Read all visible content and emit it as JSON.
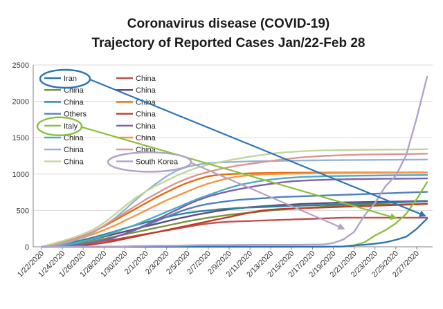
{
  "chart_data": {
    "type": "line",
    "title_lines": [
      "Coronavirus disease (COVID-19)",
      "Trajectory of Reported Cases Jan/22-Feb 28"
    ],
    "xlabel": "",
    "ylabel": "",
    "ylim": [
      0,
      2500
    ],
    "yticks": [
      0,
      500,
      1000,
      1500,
      2000,
      2500
    ],
    "grid": "horizontal",
    "legend_location": "top-left",
    "x": [
      "1/22/2020",
      "1/23/2020",
      "1/24/2020",
      "1/25/2020",
      "1/26/2020",
      "1/27/2020",
      "1/28/2020",
      "1/29/2020",
      "1/30/2020",
      "1/31/2020",
      "2/1/2020",
      "2/2/2020",
      "2/3/2020",
      "2/4/2020",
      "2/5/2020",
      "2/6/2020",
      "2/7/2020",
      "2/8/2020",
      "2/9/2020",
      "2/10/2020",
      "2/11/2020",
      "2/12/2020",
      "2/13/2020",
      "2/14/2020",
      "2/15/2020",
      "2/16/2020",
      "2/17/2020",
      "2/18/2020",
      "2/19/2020",
      "2/20/2020",
      "2/21/2020",
      "2/22/2020",
      "2/23/2020",
      "2/24/2020",
      "2/25/2020",
      "2/26/2020",
      "2/27/2020",
      "2/28/2020"
    ],
    "xtick_labels": [
      "1/22/2020",
      "1/24/2020",
      "1/26/2020",
      "1/28/2020",
      "1/30/2020",
      "2/1/2020",
      "2/3/2020",
      "2/5/2020",
      "2/7/2020",
      "2/9/2020",
      "2/11/2020",
      "2/13/2020",
      "2/15/2020",
      "2/17/2020",
      "2/19/2020",
      "2/21/2020",
      "2/23/2020",
      "2/25/2020",
      "2/27/2020"
    ],
    "series": [
      {
        "name": "Iran",
        "color": "#2e75b6",
        "values": [
          0,
          0,
          0,
          0,
          0,
          0,
          0,
          0,
          0,
          0,
          0,
          0,
          0,
          0,
          0,
          0,
          0,
          0,
          0,
          0,
          0,
          0,
          0,
          0,
          0,
          0,
          0,
          0,
          2,
          5,
          18,
          28,
          43,
          61,
          95,
          139,
          245,
          388
        ]
      },
      {
        "name": "China",
        "color": "#c0504d",
        "values": [
          0,
          5,
          15,
          25,
          40,
          60,
          80,
          100,
          125,
          150,
          175,
          200,
          225,
          250,
          275,
          300,
          320,
          335,
          345,
          350,
          355,
          360,
          365,
          370,
          375,
          380,
          385,
          390,
          395,
          400,
          400,
          400,
          400,
          400,
          400,
          400,
          400,
          400
        ]
      },
      {
        "name": "China",
        "color": "#77933c",
        "values": [
          0,
          10,
          20,
          35,
          55,
          80,
          110,
          140,
          170,
          200,
          230,
          260,
          290,
          320,
          350,
          375,
          400,
          420,
          440,
          455,
          470,
          485,
          500,
          510,
          520,
          530,
          540,
          550,
          560,
          565,
          570,
          575,
          580,
          580,
          580,
          585,
          585,
          590
        ]
      },
      {
        "name": "China",
        "color": "#604a7b",
        "values": [
          0,
          15,
          30,
          50,
          75,
          105,
          140,
          175,
          210,
          245,
          280,
          315,
          350,
          385,
          415,
          445,
          470,
          495,
          515,
          530,
          545,
          555,
          565,
          575,
          580,
          590,
          595,
          600,
          605,
          610,
          612,
          615,
          618,
          620,
          622,
          625,
          628,
          630
        ]
      },
      {
        "name": "China",
        "color": "#31849b",
        "values": [
          0,
          20,
          40,
          65,
          95,
          130,
          170,
          210,
          255,
          295,
          335,
          375,
          410,
          440,
          465,
          485,
          500,
          515,
          525,
          535,
          540,
          545,
          550,
          555,
          560,
          565,
          570,
          575,
          580,
          585,
          590,
          595,
          600,
          605,
          610,
          615,
          620,
          625
        ]
      },
      {
        "name": "China",
        "color": "#e46c0a",
        "values": [
          0,
          30,
          60,
          100,
          150,
          210,
          280,
          360,
          440,
          520,
          600,
          680,
          750,
          820,
          880,
          930,
          970,
          990,
          1000,
          1005,
          1010,
          1012,
          1015,
          1017,
          1018,
          1019,
          1020,
          1020,
          1021,
          1021,
          1022,
          1022,
          1022,
          1023,
          1023,
          1023,
          1024,
          1024
        ]
      },
      {
        "name": "Others",
        "color": "#4f81bd",
        "values": [
          0,
          5,
          10,
          20,
          35,
          60,
          90,
          130,
          180,
          230,
          290,
          350,
          410,
          470,
          520,
          560,
          590,
          610,
          630,
          645,
          655,
          665,
          675,
          685,
          690,
          695,
          700,
          705,
          710,
          715,
          720,
          725,
          730,
          735,
          740,
          745,
          750,
          755
        ]
      },
      {
        "name": "China",
        "color": "#c0392b",
        "values": [
          0,
          2,
          5,
          10,
          20,
          35,
          55,
          80,
          110,
          140,
          170,
          200,
          230,
          260,
          290,
          320,
          350,
          380,
          410,
          440,
          470,
          495,
          510,
          520,
          525,
          530,
          535,
          540,
          545,
          550,
          555,
          560,
          565,
          570,
          575,
          580,
          585,
          590
        ]
      },
      {
        "name": "Italy",
        "color": "#8cbf3f",
        "values": [
          0,
          0,
          0,
          0,
          0,
          0,
          0,
          0,
          0,
          2,
          2,
          2,
          2,
          2,
          2,
          3,
          3,
          3,
          3,
          3,
          3,
          3,
          3,
          3,
          3,
          3,
          3,
          3,
          3,
          3,
          20,
          62,
          155,
          229,
          322,
          453,
          655,
          888
        ]
      },
      {
        "name": "China",
        "color": "#7f5fa8",
        "values": [
          0,
          5,
          10,
          20,
          35,
          60,
          90,
          130,
          180,
          240,
          300,
          370,
          440,
          510,
          580,
          640,
          690,
          730,
          765,
          795,
          820,
          845,
          865,
          885,
          900,
          910,
          915,
          920,
          925,
          928,
          930,
          932,
          934,
          935,
          936,
          937,
          938,
          940
        ]
      },
      {
        "name": "China",
        "color": "#4bacc6",
        "values": [
          0,
          10,
          25,
          45,
          75,
          110,
          150,
          200,
          250,
          300,
          360,
          420,
          480,
          540,
          600,
          660,
          710,
          760,
          810,
          850,
          880,
          905,
          925,
          940,
          950,
          960,
          965,
          970,
          972,
          974,
          976,
          978,
          980,
          982,
          984,
          985,
          986,
          987
        ]
      },
      {
        "name": "China",
        "color": "#f79646",
        "values": [
          0,
          25,
          50,
          85,
          125,
          175,
          230,
          290,
          360,
          430,
          500,
          570,
          640,
          700,
          760,
          820,
          870,
          910,
          945,
          970,
          985,
          995,
          1000,
          1003,
          1006,
          1008,
          1010,
          1012,
          1014,
          1015,
          1016,
          1017,
          1018,
          1019,
          1020,
          1021,
          1022,
          1023
        ]
      },
      {
        "name": "China",
        "color": "#95b3d7",
        "values": [
          0,
          20,
          45,
          80,
          130,
          200,
          290,
          390,
          510,
          640,
          760,
          870,
          970,
          1050,
          1100,
          1130,
          1150,
          1160,
          1165,
          1170,
          1175,
          1178,
          1180,
          1182,
          1184,
          1186,
          1188,
          1190,
          1191,
          1192,
          1193,
          1194,
          1195,
          1196,
          1197,
          1198,
          1199,
          1200
        ]
      },
      {
        "name": "China",
        "color": "#d99694",
        "values": [
          0,
          25,
          55,
          95,
          145,
          210,
          290,
          380,
          470,
          560,
          650,
          730,
          810,
          880,
          940,
          990,
          1030,
          1065,
          1095,
          1120,
          1140,
          1160,
          1180,
          1200,
          1215,
          1230,
          1240,
          1250,
          1255,
          1260,
          1265,
          1268,
          1270,
          1272,
          1274,
          1276,
          1278,
          1280
        ]
      },
      {
        "name": "China",
        "color": "#c3d69b",
        "values": [
          0,
          40,
          80,
          125,
          175,
          240,
          330,
          440,
          560,
          670,
          760,
          840,
          910,
          980,
          1040,
          1090,
          1130,
          1160,
          1190,
          1215,
          1240,
          1260,
          1280,
          1295,
          1305,
          1315,
          1320,
          1325,
          1328,
          1330,
          1332,
          1334,
          1335,
          1336,
          1337,
          1338,
          1340,
          1342
        ]
      },
      {
        "name": "South Korea",
        "color": "#b3a2c7",
        "values": [
          1,
          1,
          2,
          2,
          3,
          4,
          4,
          4,
          4,
          11,
          12,
          15,
          15,
          16,
          19,
          23,
          24,
          24,
          25,
          27,
          28,
          28,
          28,
          28,
          28,
          29,
          30,
          31,
          51,
          104,
          204,
          433,
          602,
          833,
          977,
          1261,
          1766,
          2337
        ]
      }
    ],
    "annotations": [
      {
        "label": "Iran",
        "kind": "ellipse-arrow",
        "color": "#2e75b6"
      },
      {
        "label": "Italy",
        "kind": "ellipse-arrow",
        "color": "#8cbf3f"
      },
      {
        "label": "South Korea",
        "kind": "ellipse-arrow",
        "color": "#b3a2c7"
      }
    ]
  }
}
